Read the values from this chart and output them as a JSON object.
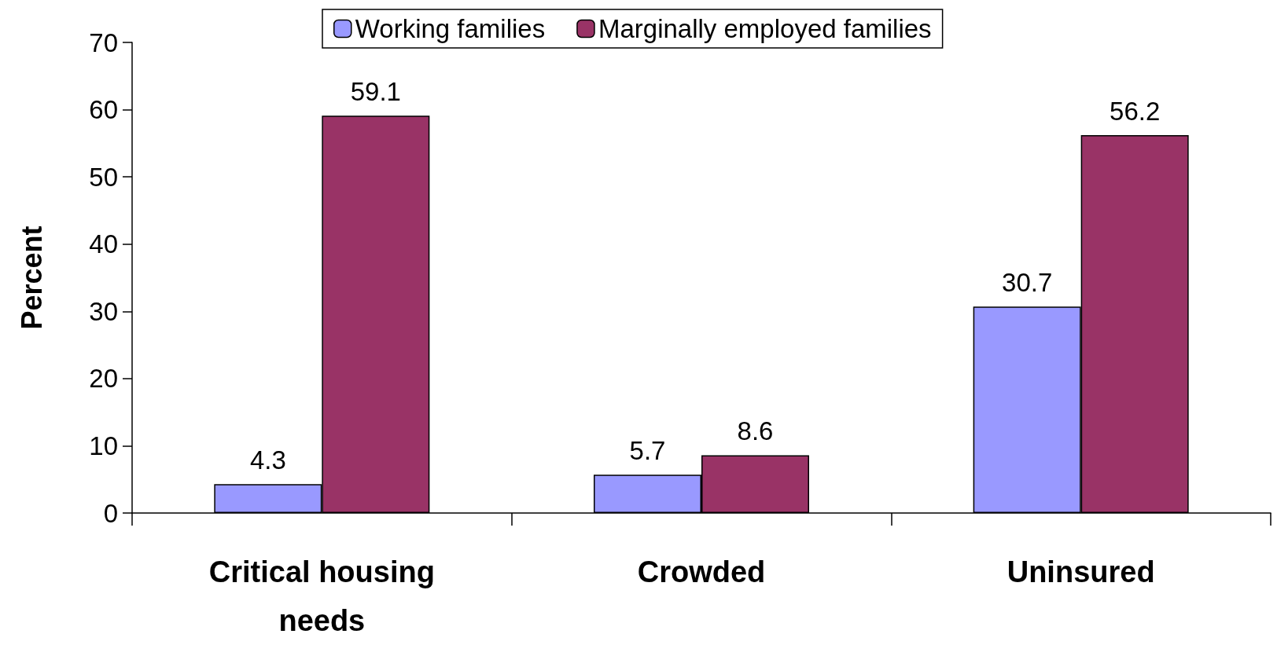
{
  "chart_data": {
    "type": "bar",
    "ylabel": "Percent",
    "categories": [
      "Critical housing\nneeds",
      "Crowded",
      "Uninsured"
    ],
    "series": [
      {
        "name": "Working families",
        "color": "#9999ff",
        "values": [
          4.3,
          5.7,
          30.7
        ]
      },
      {
        "name": "Marginally employed families",
        "color": "#993366",
        "values": [
          59.1,
          8.6,
          56.2
        ]
      }
    ],
    "ylim": [
      0,
      70
    ],
    "yticks": [
      0,
      10,
      20,
      30,
      40,
      50,
      60,
      70
    ],
    "grid": false,
    "legend": "top",
    "data_labels": true
  }
}
